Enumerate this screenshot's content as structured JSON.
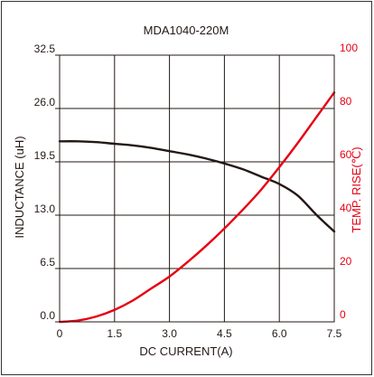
{
  "chart_data": {
    "type": "line",
    "title": "MDA1040-220M",
    "xlabel": "DC CURRENT(A)",
    "ylabel_left": "INDUCTANCE (uH)",
    "ylabel_right": "TEMP. RISE(℃)",
    "xlim": [
      0,
      7.5
    ],
    "ylim_left": [
      0,
      32.5
    ],
    "ylim_right": [
      0,
      100
    ],
    "x_ticks": [
      "0",
      "1.5",
      "3.0",
      "4.5",
      "6.0",
      "7.5"
    ],
    "y_left_ticks": [
      "0.0",
      "6.5",
      "13.0",
      "19.5",
      "26.0",
      "32.5"
    ],
    "y_right_ticks": [
      "0",
      "20",
      "40",
      "60",
      "80",
      "100"
    ],
    "grid": true,
    "series": [
      {
        "name": "",
        "axis": "left",
        "color": "#231815",
        "x": [
          0,
          0.5,
          1.0,
          1.5,
          2.0,
          2.5,
          3.0,
          3.5,
          4.0,
          4.5,
          5.0,
          5.5,
          6.0,
          6.5,
          7.0,
          7.5
        ],
        "y": [
          22.0,
          22.0,
          21.9,
          21.7,
          21.5,
          21.2,
          20.8,
          20.4,
          19.9,
          19.3,
          18.6,
          17.7,
          16.8,
          15.4,
          13.1,
          11.0
        ]
      },
      {
        "name": "",
        "axis": "right",
        "color": "#e60012",
        "x": [
          0,
          0.5,
          1.0,
          1.5,
          2.0,
          2.5,
          3.0,
          3.5,
          4.0,
          4.5,
          5.0,
          5.5,
          6.0,
          6.5,
          7.0,
          7.5
        ],
        "y": [
          0,
          0.5,
          2,
          4.5,
          8,
          12.5,
          17,
          22.5,
          28.5,
          35,
          42,
          49.5,
          58,
          67,
          76.5,
          86
        ]
      }
    ]
  }
}
